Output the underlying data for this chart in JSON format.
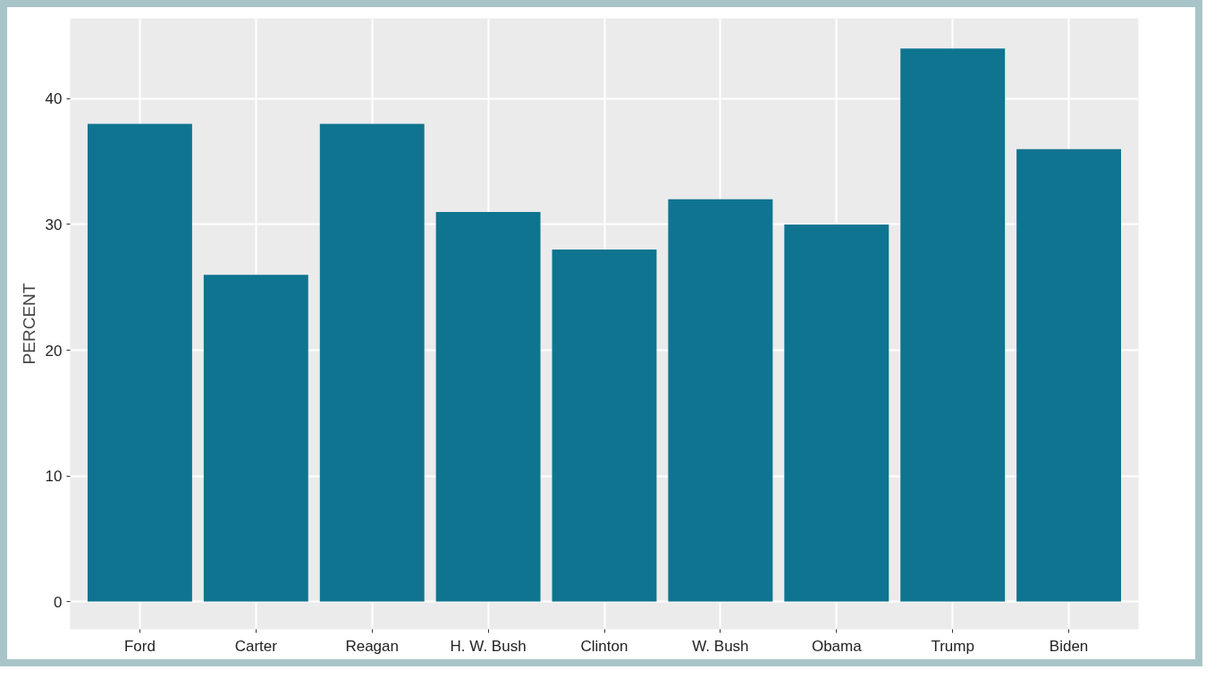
{
  "chart_data": {
    "type": "bar",
    "ylabel": "PERCENT",
    "categories": [
      "Ford",
      "Carter",
      "Reagan",
      "H. W. Bush",
      "Clinton",
      "W. Bush",
      "Obama",
      "Trump",
      "Biden"
    ],
    "values": [
      38,
      26,
      38,
      31,
      28,
      32,
      30,
      44,
      36
    ],
    "color": "#0f7490",
    "ylim": [
      -2.2,
      46.4
    ],
    "yticks": [
      0,
      10,
      20,
      30,
      40
    ],
    "grid": true
  }
}
